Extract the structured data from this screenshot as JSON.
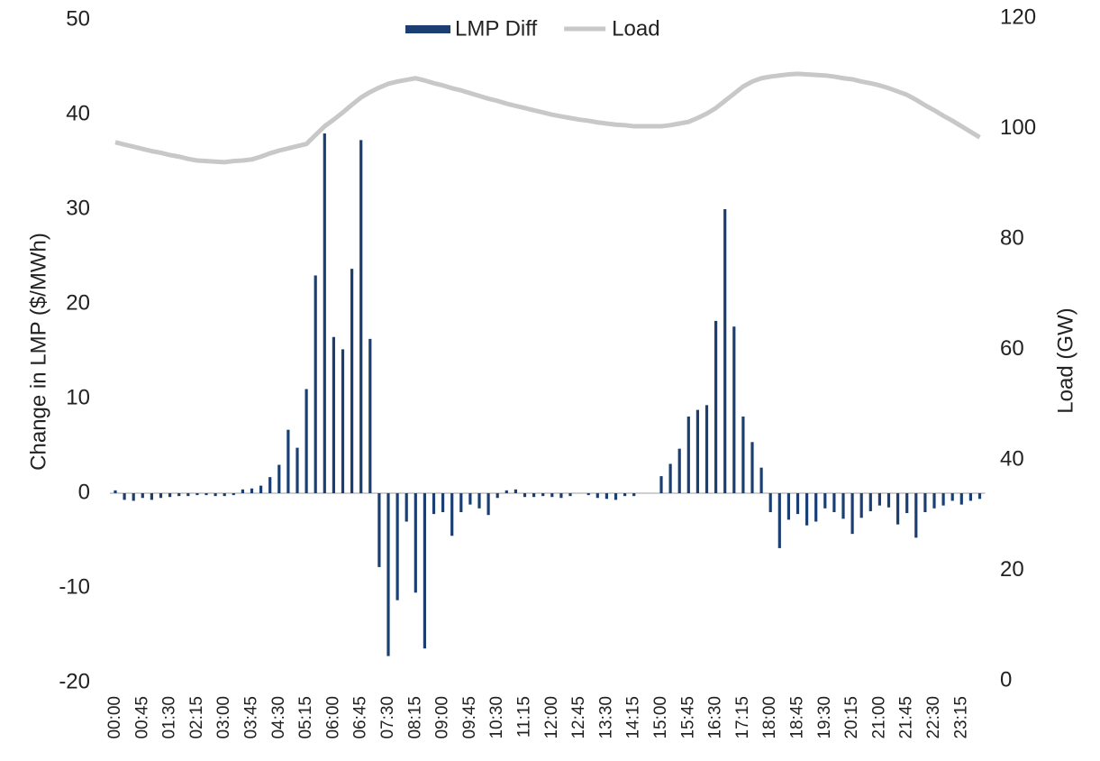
{
  "chart_data": {
    "type": "bar-line",
    "y_label": "Change in LMP ($/MWh)",
    "y2_label": "Load (GW)",
    "categories": [
      "00:00",
      null,
      null,
      "00:45",
      null,
      null,
      "01:30",
      null,
      null,
      "02:15",
      null,
      null,
      "03:00",
      null,
      null,
      "03:45",
      null,
      null,
      "04:30",
      null,
      null,
      "05:15",
      null,
      null,
      "06:00",
      null,
      null,
      "06:45",
      null,
      null,
      "07:30",
      null,
      null,
      "08:15",
      null,
      null,
      "09:00",
      null,
      null,
      "09:45",
      null,
      null,
      "10:30",
      null,
      null,
      "11:15",
      null,
      null,
      "12:00",
      null,
      null,
      "12:45",
      null,
      null,
      "13:30",
      null,
      null,
      "14:15",
      null,
      null,
      "15:00",
      null,
      null,
      "15:45",
      null,
      null,
      "16:30",
      null,
      null,
      "17:15",
      null,
      null,
      "18:00",
      null,
      null,
      "18:45",
      null,
      null,
      "19:30",
      null,
      null,
      "20:15",
      null,
      null,
      "21:00",
      null,
      null,
      "21:45",
      null,
      null,
      "22:30",
      null,
      null,
      "23:15",
      null,
      null
    ],
    "series": [
      {
        "name": "LMP Diff",
        "type": "bar",
        "color": "#1b3f73",
        "values": [
          0.3,
          -0.7,
          -0.8,
          -0.5,
          -0.7,
          -0.5,
          -0.4,
          -0.3,
          -0.3,
          -0.2,
          -0.2,
          -0.3,
          -0.3,
          -0.2,
          0.4,
          0.5,
          0.8,
          1.7,
          3.0,
          6.7,
          4.8,
          11,
          23,
          38,
          16.5,
          15.2,
          23.7,
          37.3,
          16.3,
          -7.8,
          -17.2,
          -11.3,
          -3,
          -10.5,
          -16.4,
          -2.2,
          -2,
          -4.5,
          -2,
          -1.2,
          -1.6,
          -2.3,
          -0.5,
          0.3,
          0.4,
          -0.4,
          -0.4,
          -0.3,
          -0.4,
          -0.5,
          -0.3,
          0,
          -0.2,
          -0.5,
          -0.6,
          -0.7,
          -0.3,
          -0.3,
          0,
          0,
          1.8,
          3.1,
          4.7,
          8.1,
          8.8,
          9.3,
          18.2,
          30,
          17.6,
          8.1,
          5.4,
          2.7,
          -2,
          -5.8,
          -2.8,
          -2.2,
          -3.4,
          -3,
          -1.6,
          -2,
          -2.7,
          -4.3,
          -2.6,
          -1.9,
          -1.3,
          -1.5,
          -3.3,
          -2.1,
          -4.7,
          -2,
          -1.6,
          -1.3,
          -0.8,
          -1.2,
          -0.8,
          -0.6
        ]
      },
      {
        "name": "Load",
        "type": "line",
        "axis": "y2",
        "color": "#c8c8c8",
        "values": [
          97.5,
          97.1,
          96.7,
          96.3,
          95.9,
          95.6,
          95.2,
          94.9,
          94.5,
          94.2,
          94.1,
          94.0,
          93.9,
          94.1,
          94.2,
          94.4,
          94.9,
          95.5,
          96.0,
          96.4,
          96.8,
          97.2,
          98.8,
          100.4,
          101.6,
          102.9,
          104.3,
          105.6,
          106.6,
          107.4,
          108.1,
          108.5,
          108.8,
          109.1,
          108.7,
          108.2,
          107.8,
          107.3,
          106.9,
          106.4,
          105.9,
          105.4,
          105.0,
          104.5,
          104.1,
          103.7,
          103.3,
          102.9,
          102.5,
          102.2,
          101.9,
          101.6,
          101.4,
          101.1,
          100.9,
          100.7,
          100.6,
          100.4,
          100.4,
          100.4,
          100.4,
          100.6,
          100.9,
          101.2,
          101.9,
          102.7,
          103.7,
          105.0,
          106.3,
          107.6,
          108.5,
          109.1,
          109.4,
          109.6,
          109.8,
          109.9,
          109.8,
          109.7,
          109.6,
          109.4,
          109.1,
          108.9,
          108.5,
          108.2,
          107.8,
          107.3,
          106.7,
          106.1,
          105.2,
          104.2,
          103.3,
          102.3,
          101.4,
          100.4,
          99.4,
          98.4
        ]
      }
    ],
    "ylim": [
      -20,
      50
    ],
    "yticks": [
      -20,
      -10,
      0,
      10,
      20,
      30,
      40,
      50
    ],
    "y2lim": [
      0,
      120
    ],
    "y2ticks": [
      0,
      20,
      40,
      60,
      80,
      100,
      120
    ],
    "grid": false,
    "legend": "top"
  }
}
